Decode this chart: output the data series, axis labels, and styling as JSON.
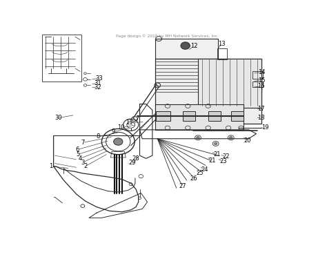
{
  "background_color": "#ffffff",
  "fig_width": 4.74,
  "fig_height": 3.72,
  "dpi": 100,
  "footer_text": "Page design © 2010 by MH Network Services, Inc.",
  "line_color": "#2a2a2a",
  "label_fontsize": 6.0,
  "leaders": [
    [
      1,
      0.13,
      0.72,
      0.04,
      0.685
    ],
    [
      2,
      0.3,
      0.74,
      0.2,
      0.76
    ],
    [
      3,
      0.3,
      0.71,
      0.19,
      0.735
    ],
    [
      4,
      0.3,
      0.68,
      0.185,
      0.71
    ],
    [
      5,
      0.3,
      0.65,
      0.175,
      0.675
    ],
    [
      6,
      0.31,
      0.62,
      0.175,
      0.645
    ],
    [
      7,
      0.32,
      0.585,
      0.195,
      0.605
    ],
    [
      8,
      0.35,
      0.555,
      0.245,
      0.56
    ],
    [
      9,
      0.38,
      0.525,
      0.295,
      0.515
    ],
    [
      10,
      0.41,
      0.51,
      0.33,
      0.495
    ],
    [
      11,
      0.44,
      0.475,
      0.365,
      0.455
    ],
    [
      12,
      0.62,
      0.085,
      0.6,
      0.055
    ],
    [
      13,
      0.7,
      0.075,
      0.695,
      0.05
    ],
    [
      14,
      0.87,
      0.235,
      0.87,
      0.22
    ],
    [
      15,
      0.87,
      0.27,
      0.87,
      0.255
    ],
    [
      16,
      0.87,
      0.305,
      0.87,
      0.29
    ],
    [
      17,
      0.85,
      0.4,
      0.855,
      0.39
    ],
    [
      18,
      0.855,
      0.445,
      0.86,
      0.435
    ],
    [
      19,
      0.855,
      0.495,
      0.86,
      0.485
    ],
    [
      20,
      0.78,
      0.535,
      0.795,
      0.54
    ],
    [
      21,
      0.67,
      0.615,
      0.69,
      0.63
    ],
    [
      21,
      0.65,
      0.655,
      0.665,
      0.67
    ],
    [
      22,
      0.7,
      0.635,
      0.725,
      0.645
    ],
    [
      23,
      0.69,
      0.655,
      0.715,
      0.67
    ],
    [
      24,
      0.6,
      0.695,
      0.625,
      0.71
    ],
    [
      25,
      0.585,
      0.715,
      0.605,
      0.73
    ],
    [
      26,
      0.565,
      0.74,
      0.575,
      0.755
    ],
    [
      27,
      0.535,
      0.78,
      0.535,
      0.79
    ],
    [
      28,
      0.425,
      0.625,
      0.405,
      0.64
    ],
    [
      29,
      0.415,
      0.645,
      0.392,
      0.66
    ],
    [
      30,
      0.115,
      0.44,
      0.07,
      0.455
    ],
    [
      31,
      0.19,
      0.265,
      0.21,
      0.27
    ],
    [
      32,
      0.19,
      0.285,
      0.21,
      0.29
    ],
    [
      33,
      0.19,
      0.245,
      0.21,
      0.245
    ]
  ]
}
